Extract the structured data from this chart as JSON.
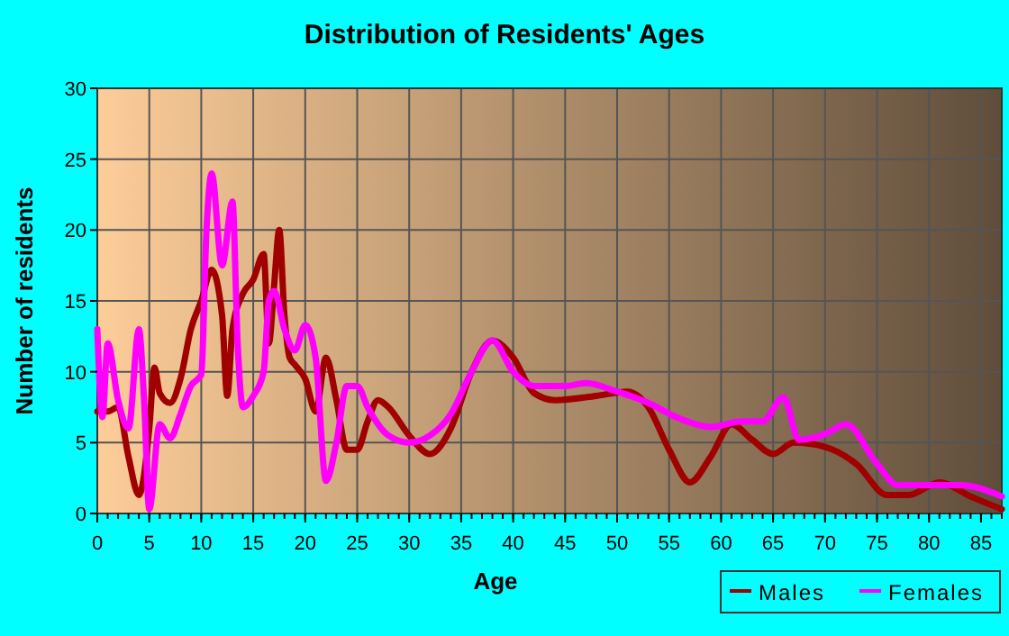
{
  "chart_data": {
    "type": "line",
    "title": "Distribution of Residents' Ages",
    "xlabel": "Age",
    "ylabel": "Number of residents",
    "xlim": [
      0,
      87
    ],
    "xticks": [
      0,
      5,
      10,
      15,
      20,
      25,
      30,
      35,
      40,
      45,
      50,
      55,
      60,
      65,
      70,
      75,
      80,
      85
    ],
    "ylim": [
      0,
      30
    ],
    "yticks": [
      0,
      5,
      10,
      15,
      20,
      25,
      30
    ],
    "grid": true,
    "legend": "bottom right",
    "line_style": "solid",
    "series": [
      {
        "name": "Males",
        "color": "#a00000",
        "x": [
          0,
          1,
          2,
          3,
          4,
          5,
          5.5,
          6,
          7,
          8,
          9,
          10,
          11,
          12,
          12.5,
          13,
          14,
          15,
          16,
          16.5,
          17,
          17.5,
          18,
          18.5,
          19,
          20,
          21,
          22,
          23,
          24,
          25,
          26,
          27,
          28,
          30,
          32,
          34,
          36,
          38,
          40,
          42,
          44,
          48,
          51,
          53,
          55,
          57,
          59,
          61,
          63,
          65,
          67,
          70,
          73,
          76,
          78,
          81,
          84,
          87
        ],
        "values": [
          7.2,
          7.2,
          7.5,
          4,
          1.3,
          6,
          10.3,
          8.5,
          7.8,
          9.5,
          13,
          15,
          17.2,
          14,
          8.3,
          13,
          15.5,
          16.5,
          18.3,
          12,
          16,
          20,
          14,
          11,
          10.5,
          9.5,
          7.2,
          11,
          8,
          4.5,
          4.5,
          6.5,
          8,
          7.5,
          5.5,
          4.2,
          6,
          10,
          12.2,
          11,
          8.5,
          8,
          8.3,
          8.6,
          7.5,
          4.5,
          2.2,
          4,
          6.3,
          5.2,
          4.2,
          5,
          4.7,
          3.5,
          1.3,
          1.3,
          2.2,
          1.2,
          0.3
        ]
      },
      {
        "name": "Females",
        "color": "#ff00ff",
        "x": [
          0,
          0.5,
          1,
          2,
          3,
          4,
          4.5,
          5,
          6,
          7,
          8,
          9,
          10,
          10.5,
          11,
          12,
          13,
          13.5,
          14,
          15,
          16,
          16.5,
          17,
          18,
          19,
          20,
          21,
          22,
          23,
          24,
          25,
          26,
          28,
          30,
          32,
          34,
          36,
          38,
          40,
          42,
          45,
          47,
          50,
          53,
          56,
          59,
          62,
          64,
          66,
          67.5,
          70,
          72,
          75,
          77,
          80,
          83,
          87
        ],
        "values": [
          13,
          6.8,
          12,
          8,
          6,
          13,
          8,
          0.3,
          6.3,
          5.3,
          7,
          9,
          9.8,
          20,
          24,
          17.5,
          22,
          12,
          7.5,
          8.3,
          10,
          15,
          15.7,
          13,
          11.5,
          13.3,
          11,
          2.3,
          5,
          9,
          9,
          7.5,
          5.5,
          5,
          5.5,
          7,
          10,
          12.2,
          10,
          9,
          9,
          9.2,
          8.6,
          7.8,
          6.7,
          6.1,
          6.5,
          6.5,
          8.2,
          5.2,
          5.6,
          6.3,
          3.5,
          2,
          2,
          2,
          1.2
        ]
      }
    ]
  }
}
